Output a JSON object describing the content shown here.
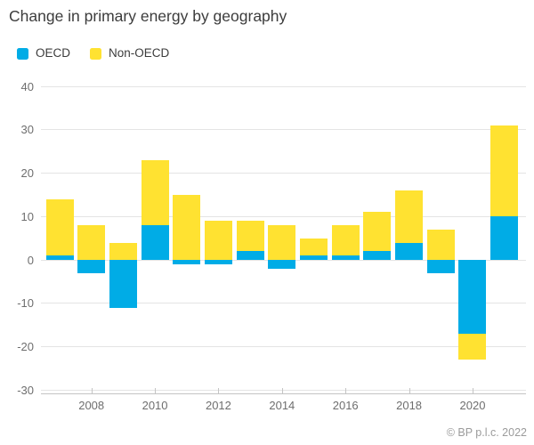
{
  "page": {
    "title": "Change in primary energy by geography",
    "footer": "© BP p.l.c. 2022"
  },
  "chart_data": {
    "type": "bar",
    "stacked": true,
    "title": "Change in primary energy by geography",
    "categories": [
      2007,
      2008,
      2009,
      2010,
      2011,
      2012,
      2013,
      2014,
      2015,
      2016,
      2017,
      2018,
      2019,
      2020,
      2021
    ],
    "series": [
      {
        "name": "OECD",
        "color": "#00ace6",
        "values": [
          1,
          -3,
          -11,
          8,
          -1,
          -1,
          2,
          -2,
          1,
          1,
          2,
          4,
          -3,
          -17,
          10
        ]
      },
      {
        "name": "Non-OECD",
        "color": "#ffe231",
        "values": [
          13,
          8,
          4,
          15,
          15,
          9,
          7,
          8,
          4,
          7,
          9,
          12,
          7,
          -6,
          21
        ]
      }
    ],
    "xlabel": "",
    "ylabel": "",
    "ylim": [
      -30,
      40
    ],
    "y_ticks": [
      40,
      30,
      20,
      10,
      0,
      -10,
      -20,
      -30
    ],
    "x_tick_labels": [
      "2008",
      "2010",
      "2012",
      "2014",
      "2016",
      "2018",
      "2020"
    ],
    "grid": true,
    "legend_position": "top-left"
  }
}
